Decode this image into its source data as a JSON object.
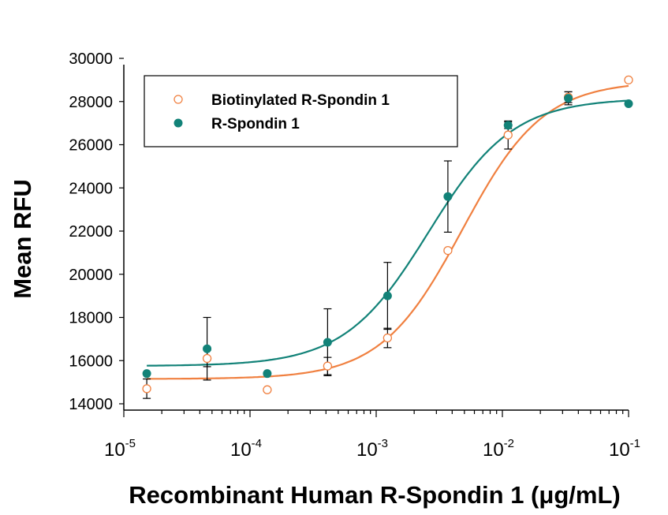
{
  "chart_data": {
    "type": "scatter",
    "title": "",
    "xlabel": "Recombinant Human R-Spondin 1 (μg/mL)",
    "ylabel": "Mean RFU",
    "xscale": "log",
    "xlim": [
      1e-05,
      0.1
    ],
    "ylim": [
      14000,
      30000
    ],
    "ytick_step": 2000,
    "yticks": [
      "14000",
      "16000",
      "18000",
      "20000",
      "22000",
      "24000",
      "26000",
      "28000",
      "30000"
    ],
    "xticks": [
      {
        "value": 1e-05,
        "base": "10",
        "exp": "-5"
      },
      {
        "value": 0.0001,
        "base": "10",
        "exp": "-4"
      },
      {
        "value": 0.001,
        "base": "10",
        "exp": "-3"
      },
      {
        "value": 0.01,
        "base": "10",
        "exp": "-2"
      },
      {
        "value": 0.1,
        "base": "10",
        "exp": "-1"
      }
    ],
    "legend_position": "top-left",
    "series": [
      {
        "name": "Biotinylated R-Spondin 1",
        "color": "#F08040",
        "marker": "open-circle",
        "x": [
          1.52e-05,
          4.57e-05,
          0.000137,
          0.000412,
          0.00123,
          0.0037,
          0.0111,
          0.0333,
          0.1
        ],
        "y": [
          14700,
          16100,
          14650,
          15750,
          17050,
          21100,
          26450,
          28200,
          29000
        ],
        "err": [
          450,
          380,
          60,
          400,
          450,
          80,
          650,
          250,
          80
        ],
        "fit": {
          "bottom": 15150,
          "top": 28950,
          "ec50": 0.0048,
          "hill": 1.35
        }
      },
      {
        "name": "R-Spondin 1",
        "color": "#128278",
        "marker": "filled-circle",
        "x": [
          1.52e-05,
          4.57e-05,
          0.000137,
          0.000412,
          0.00123,
          0.0037,
          0.0111,
          0.0333,
          0.1
        ],
        "y": [
          15400,
          16550,
          15400,
          16850,
          19000,
          23600,
          26900,
          28150,
          27900
        ],
        "err": [
          0,
          1450,
          0,
          1550,
          1550,
          1650,
          150,
          300,
          0
        ],
        "fit": {
          "bottom": 15750,
          "top": 28150,
          "ec50": 0.0026,
          "hill": 1.3
        }
      }
    ]
  }
}
